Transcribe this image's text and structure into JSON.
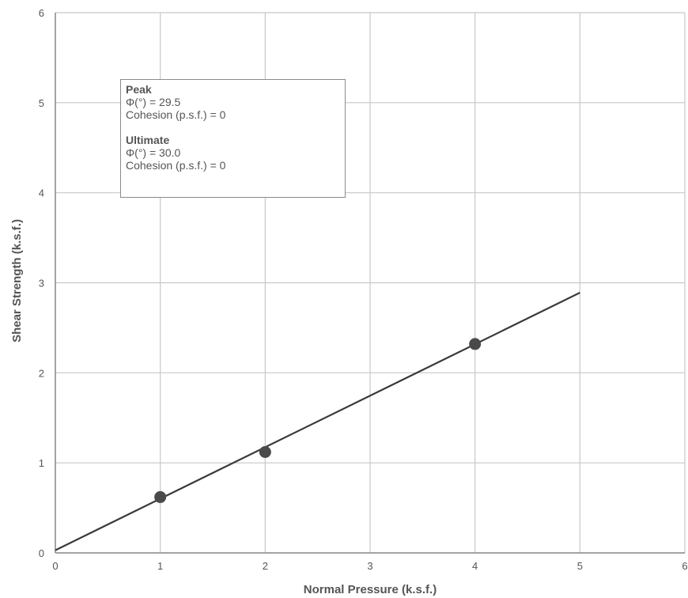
{
  "chart_data": {
    "type": "scatter",
    "xlabel": "Normal Pressure (k.s.f.)",
    "ylabel": "Shear Strength (k.s.f.)",
    "xlim": [
      0,
      6
    ],
    "ylim": [
      0,
      6
    ],
    "xticks": [
      "0",
      "1",
      "2",
      "3",
      "4",
      "5",
      "6"
    ],
    "yticks": [
      "0",
      "1",
      "2",
      "3",
      "4",
      "5",
      "6"
    ],
    "grid": true,
    "points": [
      {
        "x": 1,
        "y": 0.62
      },
      {
        "x": 2,
        "y": 1.12
      },
      {
        "x": 4,
        "y": 2.32
      }
    ],
    "fit_line": {
      "x": [
        0,
        5
      ],
      "y": [
        0.03,
        2.89
      ]
    },
    "legend_position": "top-left",
    "annotation": {
      "peak_header": "Peak",
      "peak_phi": "Φ(°) = 29.5",
      "peak_cohesion": "Cohesion (p.s.f.) = 0",
      "ultimate_header": "Ultimate",
      "ultimate_phi": "Φ(°) = 30.0",
      "ultimate_cohesion": "Cohesion (p.s.f.) = 0"
    },
    "colors": {
      "line": "#3a3a3a",
      "marker": "#4a4a4a",
      "grid": "#c8c8c8",
      "axis": "#8a8a8a"
    }
  }
}
